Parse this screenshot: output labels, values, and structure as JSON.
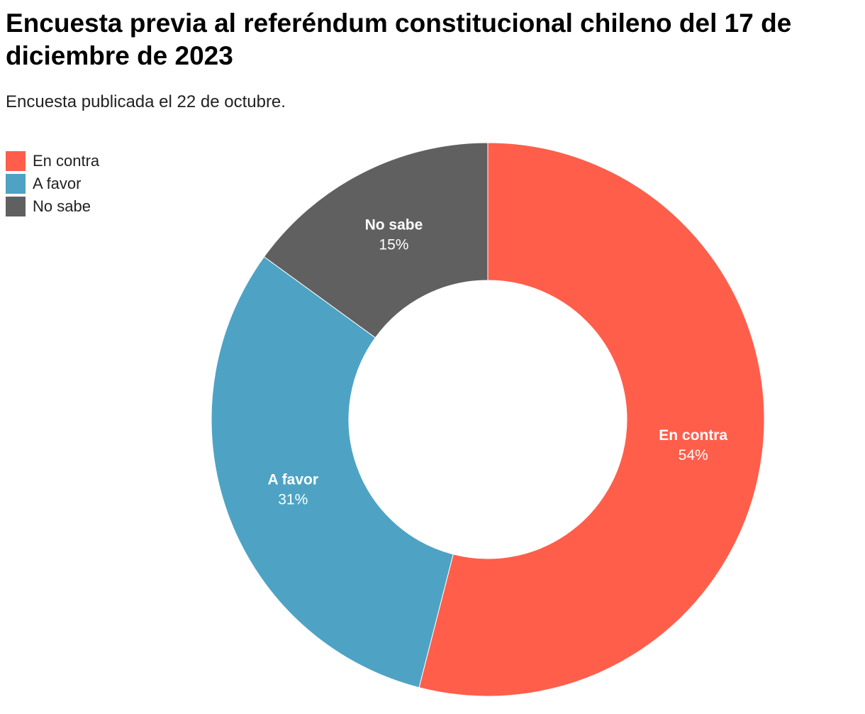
{
  "chart_data": {
    "type": "pie",
    "title": "Encuesta previa al referéndum constitucional chileno del 17 de diciembre de 2023",
    "subtitle": "Encuesta publicada el 22 de octubre.",
    "categories": [
      "En contra",
      "A favor",
      "No sabe"
    ],
    "values": [
      54,
      31,
      15
    ],
    "value_labels": [
      "54%",
      "31%",
      "15%"
    ],
    "colors": [
      "#ff5e4b",
      "#4ea3c4",
      "#606060"
    ],
    "legend": "top-left"
  }
}
